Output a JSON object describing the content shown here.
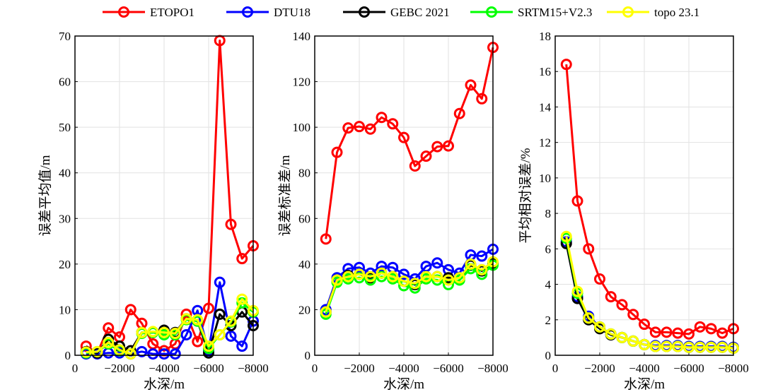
{
  "chart_data": [
    {
      "type": "line",
      "xlabel": "水深/m",
      "ylabel": "误差平均值/m",
      "xlim": [
        0,
        -8000
      ],
      "ylim": [
        0,
        70
      ],
      "xticks": [
        0,
        -2000,
        -4000,
        -6000,
        -8000
      ],
      "xtick_labels": [
        "0",
        "−2000",
        "−4000",
        "−6000",
        "−8000"
      ],
      "yticks": [
        0,
        10,
        20,
        30,
        40,
        50,
        60,
        70
      ],
      "grid": true,
      "x": [
        -500,
        -1000,
        -1500,
        -2000,
        -2500,
        -3000,
        -3500,
        -4000,
        -4500,
        -5000,
        -5500,
        -6000,
        -6500,
        -7000,
        -7500,
        -8000
      ],
      "series": [
        {
          "name": "ETOPO1",
          "color": "#ff0000",
          "values": [
            2,
            0.5,
            6,
            4,
            10,
            7,
            2.5,
            1,
            2.5,
            9,
            3,
            10.3,
            69,
            28.7,
            21.2,
            24
          ]
        },
        {
          "name": "DTU18",
          "color": "#0000ff",
          "values": [
            0.3,
            0.3,
            0.5,
            0.5,
            0.3,
            0.8,
            0.3,
            0.3,
            0.3,
            4.5,
            9.8,
            1,
            16,
            4.2,
            2,
            7.5
          ]
        },
        {
          "name": "GEBC 2021",
          "color": "#000000",
          "values": [
            0.8,
            0.5,
            3.5,
            2,
            1,
            5,
            5,
            5.5,
            5,
            8,
            7.5,
            0.5,
            9,
            6.5,
            9.5,
            6.5
          ]
        },
        {
          "name": "SRTM15+V2.3",
          "color": "#00ff00",
          "values": [
            0.5,
            0.8,
            2.5,
            1,
            0.3,
            4.8,
            5,
            4.5,
            4.5,
            7.8,
            7.5,
            1.5,
            4.5,
            7.3,
            11.5,
            9.5
          ]
        },
        {
          "name": "topo 23.1",
          "color": "#ffff00",
          "values": [
            0.7,
            0.8,
            2.8,
            1.2,
            0.3,
            5,
            5.2,
            5,
            4.8,
            8,
            7.8,
            2,
            4.5,
            7.5,
            12.3,
            9.8
          ]
        }
      ]
    },
    {
      "type": "line",
      "xlabel": "水深/m",
      "ylabel": "误差标准差/m",
      "xlim": [
        0,
        -8000
      ],
      "ylim": [
        0,
        140
      ],
      "xticks": [
        0,
        -2000,
        -4000,
        -6000,
        -8000
      ],
      "xtick_labels": [
        "0",
        "−2000",
        "−4000",
        "−6000",
        "−8000"
      ],
      "yticks": [
        0,
        20,
        40,
        60,
        80,
        100,
        120,
        140
      ],
      "grid": true,
      "x": [
        -500,
        -1000,
        -1500,
        -2000,
        -2500,
        -3000,
        -3500,
        -4000,
        -4500,
        -5000,
        -5500,
        -6000,
        -6500,
        -7000,
        -7500,
        -8000
      ],
      "series": [
        {
          "name": "ETOPO1",
          "color": "#ff0000",
          "values": [
            51,
            89,
            99.7,
            100.3,
            99.2,
            104.3,
            101.5,
            95.5,
            83,
            87.3,
            91.5,
            91.8,
            106,
            118.5,
            112.5,
            135
          ]
        },
        {
          "name": "DTU18",
          "color": "#0000ff",
          "values": [
            20,
            34,
            38,
            38.5,
            36,
            39,
            38.5,
            35.5,
            33.5,
            39,
            40.5,
            37.5,
            36,
            44,
            43.5,
            46.5
          ]
        },
        {
          "name": "GEBC 2021",
          "color": "#000000",
          "values": [
            19,
            33,
            35,
            35.5,
            34,
            36,
            34.5,
            32.5,
            31,
            34.5,
            34.5,
            34,
            34,
            39.5,
            37,
            40.5
          ]
        },
        {
          "name": "SRTM15+V2.3",
          "color": "#00ff00",
          "values": [
            18,
            32,
            33.5,
            34,
            33,
            34.5,
            33.5,
            30.5,
            29.5,
            33.5,
            33,
            31,
            33,
            38,
            35.5,
            39.5
          ]
        },
        {
          "name": "topo 23.1",
          "color": "#ffff00",
          "values": [
            19,
            33,
            34.5,
            35.5,
            34.5,
            36,
            34.5,
            32.5,
            31.5,
            34.5,
            34.5,
            33,
            34,
            40,
            37.5,
            41
          ]
        }
      ]
    },
    {
      "type": "line",
      "xlabel": "水深/m",
      "ylabel": "平均相对误差/%",
      "xlim": [
        0,
        -8000
      ],
      "ylim": [
        0,
        18
      ],
      "xticks": [
        0,
        -2000,
        -4000,
        -6000,
        -8000
      ],
      "xtick_labels": [
        "0",
        "−2000",
        "−4000",
        "−6000",
        "−8000"
      ],
      "yticks": [
        0,
        2,
        4,
        6,
        8,
        10,
        12,
        14,
        16,
        18
      ],
      "grid": true,
      "x": [
        -500,
        -1000,
        -1500,
        -2000,
        -2500,
        -3000,
        -3500,
        -4000,
        -4500,
        -5000,
        -5500,
        -6000,
        -6500,
        -7000,
        -7500,
        -8000
      ],
      "series": [
        {
          "name": "ETOPO1",
          "color": "#ff0000",
          "values": [
            16.4,
            8.7,
            6,
            4.3,
            3.3,
            2.85,
            2.3,
            1.75,
            1.3,
            1.3,
            1.25,
            1.2,
            1.6,
            1.5,
            1.25,
            1.5
          ]
        },
        {
          "name": "DTU18",
          "color": "#0000ff",
          "values": [
            6.4,
            3.3,
            2.2,
            1.6,
            1.2,
            1,
            0.8,
            0.6,
            0.55,
            0.55,
            0.55,
            0.5,
            0.5,
            0.5,
            0.5,
            0.45
          ]
        },
        {
          "name": "GEBC 2021",
          "color": "#000000",
          "values": [
            6.3,
            3.2,
            2,
            1.5,
            1.15,
            1,
            0.8,
            0.6,
            0.5,
            0.5,
            0.5,
            0.45,
            0.45,
            0.45,
            0.45,
            0.4
          ]
        },
        {
          "name": "SRTM15+V2.3",
          "color": "#00ff00",
          "values": [
            6.6,
            3.5,
            2.1,
            1.6,
            1.2,
            1,
            0.8,
            0.6,
            0.5,
            0.5,
            0.5,
            0.45,
            0.45,
            0.45,
            0.45,
            0.4
          ]
        },
        {
          "name": "topo 23.1",
          "color": "#ffff00",
          "values": [
            6.7,
            3.6,
            2.1,
            1.6,
            1.2,
            1,
            0.8,
            0.6,
            0.5,
            0.5,
            0.5,
            0.45,
            0.45,
            0.45,
            0.45,
            0.4
          ]
        }
      ]
    }
  ],
  "legend": {
    "placement": "top",
    "entries": [
      "ETOPO1",
      "DTU18",
      "GEBC 2021",
      "SRTM15+V2.3",
      "topo 23.1"
    ]
  }
}
